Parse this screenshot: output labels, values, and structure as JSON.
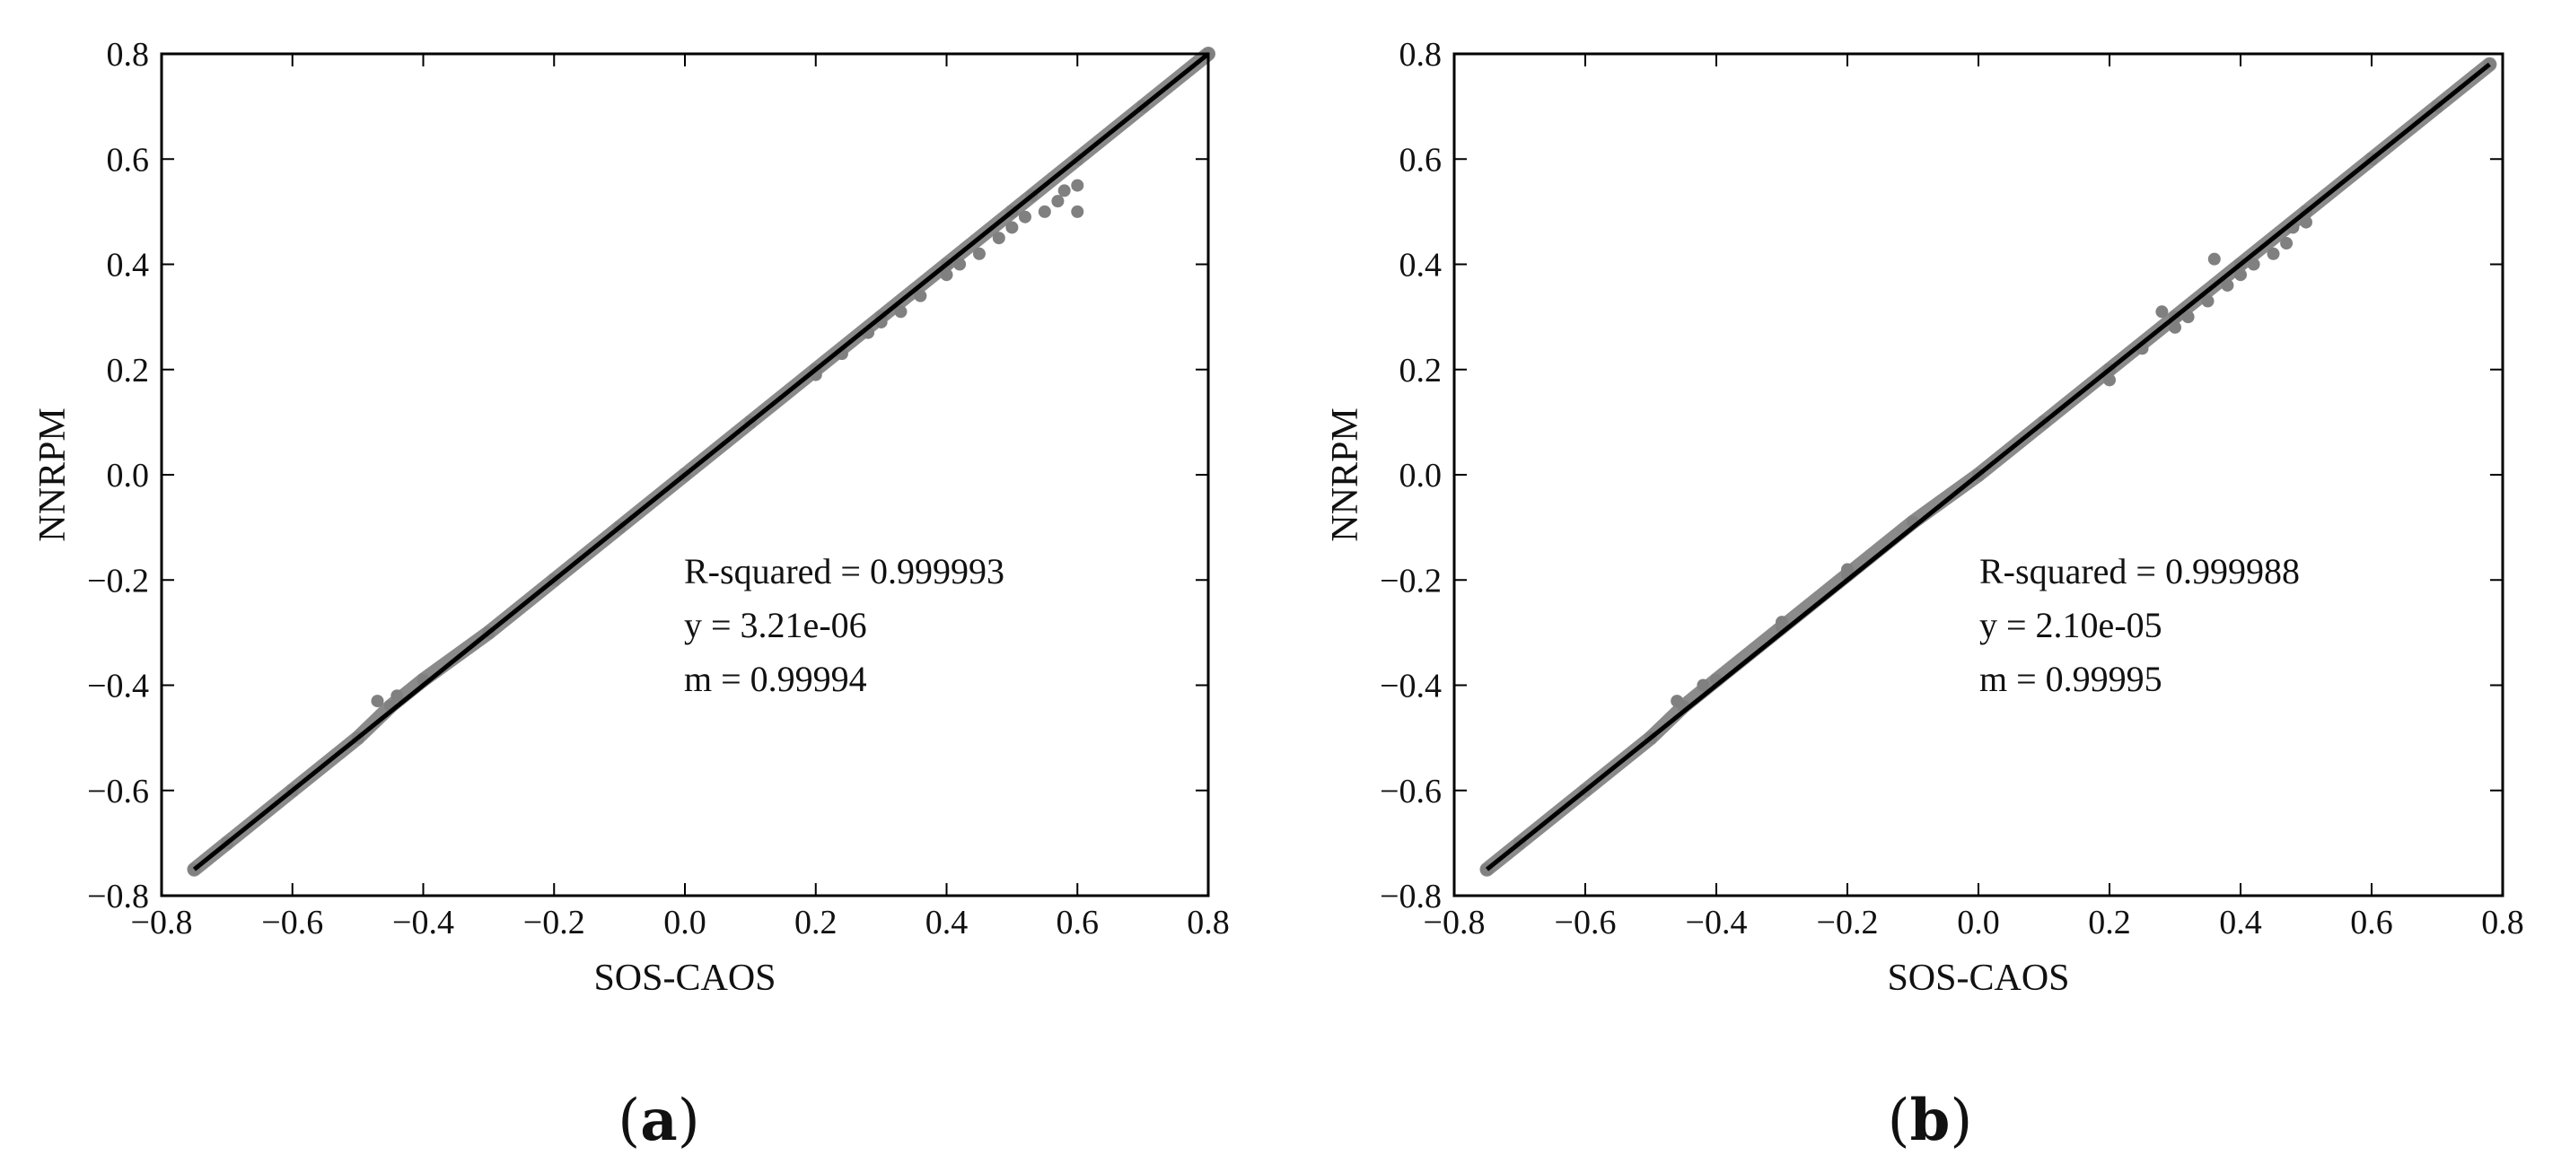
{
  "chart_data": [
    {
      "type": "scatter",
      "panel_label": "(a)",
      "panel_letter": "a",
      "xlabel": "SOS-CAOS",
      "ylabel": "NNRPM",
      "xlim": [
        -0.8,
        0.8
      ],
      "ylim": [
        -0.8,
        0.8
      ],
      "xticks": [
        "−0.8",
        "−0.6",
        "−0.4",
        "−0.2",
        "0.0",
        "0.2",
        "0.4",
        "0.6",
        "0.8"
      ],
      "yticks": [
        "−0.8",
        "−0.6",
        "−0.4",
        "−0.2",
        "0.0",
        "0.2",
        "0.4",
        "0.6",
        "0.8"
      ],
      "annotations": [
        "R-squared = 0.999993",
        "y = 3.21e-06",
        "m = 0.99994"
      ],
      "fit_line": {
        "slope": 0.99994,
        "intercept": 3.21e-06,
        "x_range": [
          -0.75,
          0.8
        ]
      },
      "series": [
        {
          "name": "core",
          "points": [
            [
              -0.75,
              -0.75
            ],
            [
              -0.7,
              -0.7
            ],
            [
              -0.6,
              -0.6
            ],
            [
              -0.5,
              -0.5
            ],
            [
              -0.45,
              -0.44
            ],
            [
              -0.4,
              -0.39
            ],
            [
              -0.3,
              -0.3
            ],
            [
              -0.2,
              -0.2
            ],
            [
              -0.1,
              -0.1
            ],
            [
              0.0,
              0.0
            ],
            [
              0.1,
              0.1
            ],
            [
              0.2,
              0.2
            ],
            [
              0.3,
              0.3
            ],
            [
              0.4,
              0.4
            ],
            [
              0.5,
              0.5
            ],
            [
              0.6,
              0.6
            ],
            [
              0.7,
              0.7
            ],
            [
              0.8,
              0.8
            ]
          ]
        },
        {
          "name": "scatter",
          "points": [
            [
              -0.47,
              -0.43
            ],
            [
              -0.44,
              -0.42
            ],
            [
              0.2,
              0.19
            ],
            [
              0.24,
              0.23
            ],
            [
              0.28,
              0.27
            ],
            [
              0.3,
              0.29
            ],
            [
              0.33,
              0.31
            ],
            [
              0.36,
              0.34
            ],
            [
              0.4,
              0.38
            ],
            [
              0.42,
              0.4
            ],
            [
              0.45,
              0.42
            ],
            [
              0.48,
              0.45
            ],
            [
              0.5,
              0.47
            ],
            [
              0.52,
              0.49
            ],
            [
              0.55,
              0.5
            ],
            [
              0.57,
              0.52
            ],
            [
              0.6,
              0.5
            ],
            [
              0.6,
              0.55
            ],
            [
              0.58,
              0.54
            ],
            [
              0.53,
              0.53
            ]
          ]
        }
      ]
    },
    {
      "type": "scatter",
      "panel_label": "(b)",
      "panel_letter": "b",
      "xlabel": "SOS-CAOS",
      "ylabel": "NNRPM",
      "xlim": [
        -0.8,
        0.8
      ],
      "ylim": [
        -0.8,
        0.8
      ],
      "xticks": [
        "−0.8",
        "−0.6",
        "−0.4",
        "−0.2",
        "0.0",
        "0.2",
        "0.4",
        "0.6",
        "0.8"
      ],
      "yticks": [
        "−0.8",
        "−0.6",
        "−0.4",
        "−0.2",
        "0.0",
        "0.2",
        "0.4",
        "0.6",
        "0.8"
      ],
      "annotations": [
        "R-squared = 0.999988",
        "y = 2.10e-05",
        "m = 0.99995"
      ],
      "fit_line": {
        "slope": 0.99995,
        "intercept": 2.1e-05,
        "x_range": [
          -0.75,
          0.78
        ]
      },
      "series": [
        {
          "name": "core",
          "points": [
            [
              -0.75,
              -0.75
            ],
            [
              -0.7,
              -0.7
            ],
            [
              -0.6,
              -0.6
            ],
            [
              -0.5,
              -0.5
            ],
            [
              -0.45,
              -0.44
            ],
            [
              -0.4,
              -0.39
            ],
            [
              -0.3,
              -0.29
            ],
            [
              -0.2,
              -0.19
            ],
            [
              -0.1,
              -0.09
            ],
            [
              0.0,
              0.0
            ],
            [
              0.1,
              0.1
            ],
            [
              0.2,
              0.2
            ],
            [
              0.3,
              0.3
            ],
            [
              0.4,
              0.4
            ],
            [
              0.5,
              0.5
            ],
            [
              0.6,
              0.6
            ],
            [
              0.7,
              0.7
            ],
            [
              0.78,
              0.78
            ]
          ]
        },
        {
          "name": "scatter",
          "points": [
            [
              -0.46,
              -0.43
            ],
            [
              -0.42,
              -0.4
            ],
            [
              -0.3,
              -0.28
            ],
            [
              -0.2,
              -0.18
            ],
            [
              0.2,
              0.18
            ],
            [
              0.25,
              0.24
            ],
            [
              0.28,
              0.31
            ],
            [
              0.3,
              0.28
            ],
            [
              0.32,
              0.3
            ],
            [
              0.35,
              0.33
            ],
            [
              0.38,
              0.36
            ],
            [
              0.4,
              0.38
            ],
            [
              0.42,
              0.4
            ],
            [
              0.45,
              0.42
            ],
            [
              0.47,
              0.44
            ],
            [
              0.48,
              0.47
            ],
            [
              0.5,
              0.48
            ],
            [
              0.36,
              0.41
            ]
          ]
        }
      ]
    }
  ]
}
